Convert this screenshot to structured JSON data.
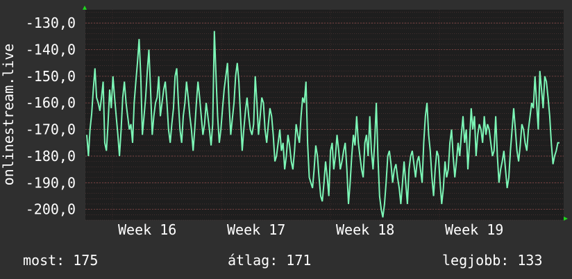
{
  "chart_data": {
    "type": "line",
    "ylabel": "onlinestream.live",
    "ylim": [
      -204,
      -125
    ],
    "y_ticks": [
      "-130,0",
      "-140,0",
      "-150,0",
      "-160,0",
      "-170,0",
      "-180,0",
      "-190,0",
      "-200,0"
    ],
    "y_tick_values": [
      -130,
      -140,
      -150,
      -160,
      -170,
      -180,
      -190,
      -200
    ],
    "x_ticks": [
      "Week 16",
      "Week 17",
      "Week 18",
      "Week 19"
    ],
    "series": [
      {
        "values": [
          -172,
          -180,
          -170,
          -164,
          -155,
          -147,
          -158,
          -160,
          -163,
          -158,
          -152,
          -175,
          -178,
          -168,
          -155,
          -162,
          -150,
          -158,
          -165,
          -172,
          -180,
          -170,
          -158,
          -152,
          -160,
          -165,
          -170,
          -168,
          -175,
          -160,
          -152,
          -145,
          -136,
          -150,
          -172,
          -165,
          -158,
          -148,
          -140,
          -155,
          -172,
          -165,
          -160,
          -158,
          -150,
          -165,
          -160,
          -155,
          -152,
          -160,
          -170,
          -175,
          -168,
          -162,
          -150,
          -147,
          -160,
          -170,
          -175,
          -165,
          -160,
          -152,
          -158,
          -165,
          -170,
          -178,
          -170,
          -160,
          -152,
          -158,
          -165,
          -172,
          -168,
          -160,
          -165,
          -170,
          -176,
          -168,
          -133,
          -150,
          -165,
          -175,
          -170,
          -162,
          -155,
          -150,
          -145,
          -160,
          -172,
          -166,
          -160,
          -150,
          -145,
          -152,
          -165,
          -178,
          -170,
          -163,
          -158,
          -165,
          -170,
          -172,
          -168,
          -150,
          -160,
          -172,
          -165,
          -158,
          -160,
          -170,
          -175,
          -168,
          -162,
          -165,
          -172,
          -182,
          -180,
          -175,
          -170,
          -178,
          -175,
          -185,
          -180,
          -172,
          -176,
          -182,
          -185,
          -178,
          -168,
          -172,
          -175,
          -165,
          -158,
          -160,
          -152,
          -175,
          -188,
          -190,
          -192,
          -185,
          -176,
          -180,
          -188,
          -195,
          -197,
          -190,
          -182,
          -188,
          -195,
          -178,
          -175,
          -185,
          -180,
          -172,
          -178,
          -185,
          -182,
          -178,
          -175,
          -185,
          -198,
          -190,
          -180,
          -172,
          -176,
          -165,
          -175,
          -180,
          -185,
          -188,
          -175,
          -172,
          -180,
          -165,
          -178,
          -185,
          -175,
          -160,
          -180,
          -195,
          -200,
          -203,
          -198,
          -190,
          -180,
          -178,
          -183,
          -190,
          -185,
          -183,
          -188,
          -192,
          -198,
          -190,
          -182,
          -190,
          -198,
          -185,
          -180,
          -178,
          -183,
          -188,
          -182,
          -180,
          -185,
          -190,
          -175,
          -165,
          -160,
          -172,
          -178,
          -188,
          -195,
          -185,
          -178,
          -180,
          -190,
          -198,
          -192,
          -182,
          -188,
          -185,
          -175,
          -170,
          -180,
          -188,
          -182,
          -175,
          -180,
          -172,
          -165,
          -175,
          -170,
          -185,
          -175,
          -162,
          -170,
          -165,
          -180,
          -172,
          -168,
          -170,
          -175,
          -165,
          -172,
          -168,
          -170,
          -175,
          -180,
          -178,
          -165,
          -180,
          -190,
          -185,
          -182,
          -178,
          -185,
          -192,
          -188,
          -178,
          -170,
          -162,
          -170,
          -178,
          -182,
          -176,
          -168,
          -170,
          -175,
          -178,
          -170,
          -165,
          -160,
          -162,
          -150,
          -160,
          -170,
          -148,
          -155,
          -162,
          -150,
          -152,
          -158,
          -165,
          -175,
          -183,
          -180,
          -178,
          -175,
          -175
        ]
      }
    ]
  },
  "stats": {
    "current": "most: 175",
    "average": "átlag: 171",
    "best": "legjobb: 133"
  },
  "colors": {
    "background": "#2f2f2f",
    "plot_background": "#1e1e1e",
    "grid": "#5a3a3a",
    "line": "#7cf6b6",
    "text": "#ffffff",
    "arrow": "#1ed61e"
  }
}
